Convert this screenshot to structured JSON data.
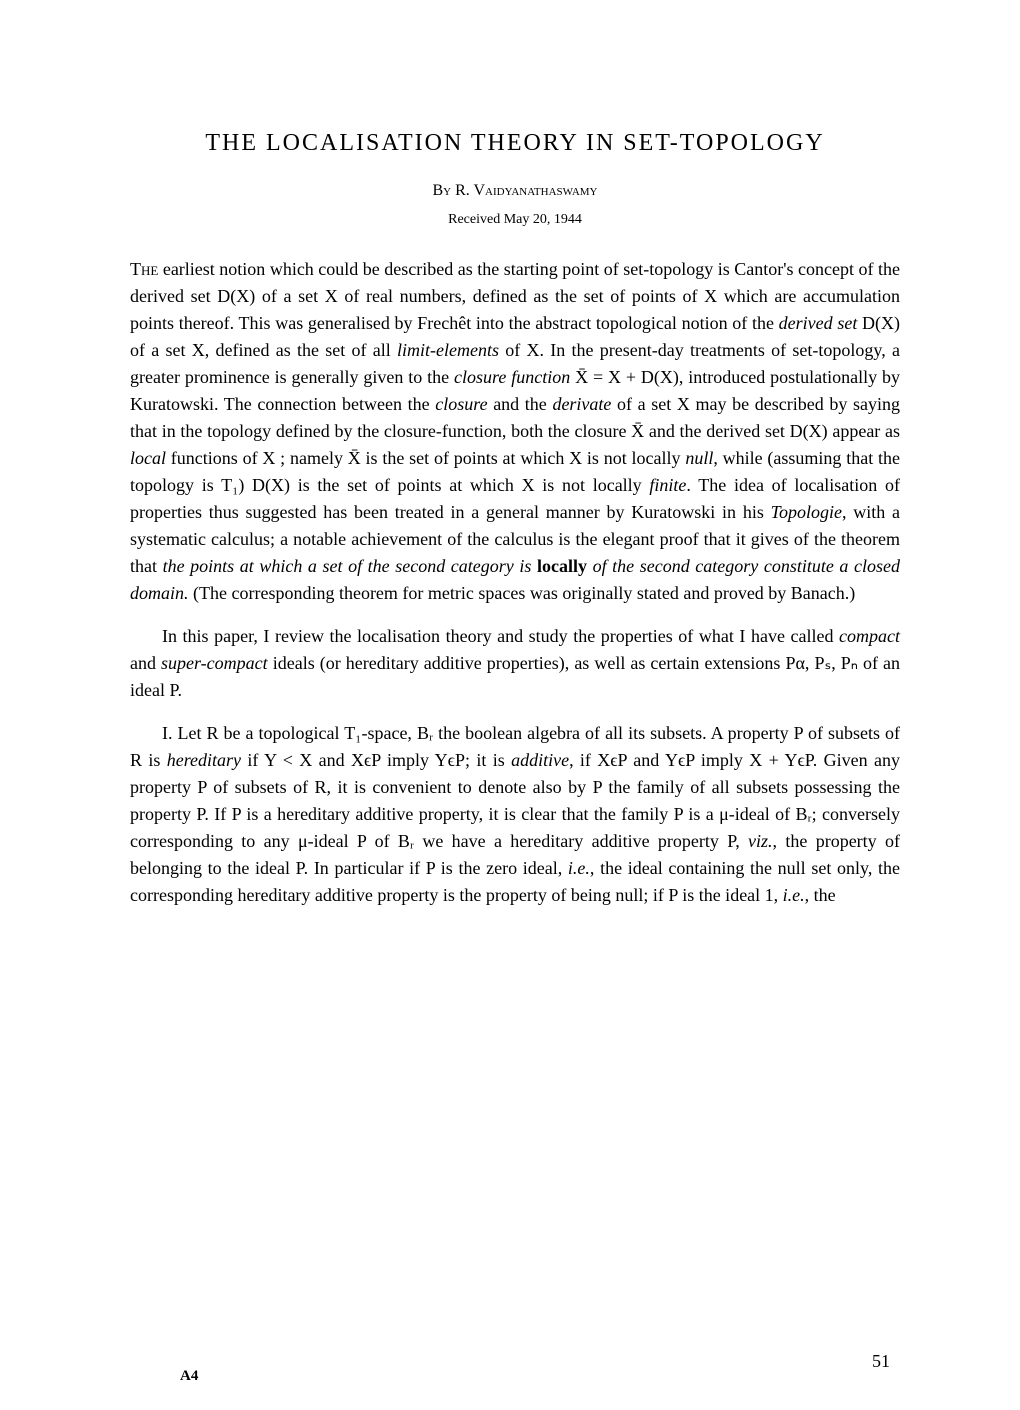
{
  "title": "THE LOCALISATION THEORY IN SET-TOPOLOGY",
  "author_prefix": "By",
  "author_name": "R. Vaidyanathaswamy",
  "received": "Received May 20, 1944",
  "para1_first": "The",
  "para1_rest": " earliest notion which could be described as the starting point of set-topology is Cantor's concept of the derived set D(X) of a set X of real numbers, defined as the set of points of X which are accumulation points thereof. This was generalised by Frechêt into the abstract topological notion of the ",
  "para1_i1": "derived set",
  "para1_mid1": " D(X) of a set X, defined as the set of all ",
  "para1_i2": "limit-elements",
  "para1_mid2": " of X. In the present-day treatments of set-topology, a greater prominence is generally given to the ",
  "para1_i3": "closure function",
  "para1_mid3": " X̄ = X + D(X), introduced postulationally by Kuratowski. The connection between the ",
  "para1_i4": "closure",
  "para1_mid4": " and the ",
  "para1_i5": "derivate",
  "para1_mid5": " of a set X may be described by saying that in the topology defined by the closure-function, both the closure X̄ and the derived set D(X) appear as ",
  "para1_i6": "local",
  "para1_mid6": " functions of X ; namely X̄ is the set of points at which X is not locally ",
  "para1_i7": "null",
  "para1_mid7": ", while (assuming that the topology is T₁) D(X) is the set of points at which X is not locally ",
  "para1_i8": "finite",
  "para1_mid8": ". The idea of localisation of properties thus suggested has been treated in a general manner by Kuratowski in his ",
  "para1_i9": "Topologie",
  "para1_mid9": ", with a systematic calculus; a notable achievement of the calculus is the elegant proof that it gives of the theorem that ",
  "para1_i10": "the points at which a set of the second category is",
  "para1_bold": " locally ",
  "para1_i11": "of the second category constitute a closed domain.",
  "para1_end": " (The corresponding theorem for metric spaces was originally stated and proved by Banach.)",
  "para2_start": "In this paper, I review the localisation theory and study the properties of what I have called ",
  "para2_i1": "compact",
  "para2_mid1": " and ",
  "para2_i2": "super-compact",
  "para2_mid2": " ideals (or hereditary additive properties), as well as certain extensions Pα, Pₛ, Pₙ of an ideal P.",
  "para3_start": "I. Let R be a topological T₁-space, Bᵣ the boolean algebra of all its subsets. A property P of subsets of R is ",
  "para3_i1": "hereditary",
  "para3_mid1": " if Y < X and XϵP imply YϵP; it is ",
  "para3_i2": "additive",
  "para3_mid2": ", if XϵP and YϵP imply X + YϵP. Given any property P of subsets of R, it is convenient to denote also by P the family of all subsets possessing the property P. If P is a hereditary additive property, it is clear that the family P is a μ-ideal of Bᵣ; conversely corresponding to any μ-ideal P of Bᵣ we have a hereditary additive property P, ",
  "para3_i3": "viz.",
  "para3_mid3": ", the property of belonging to the ideal P. In particular if P is the zero ideal, ",
  "para3_i4": "i.e.",
  "para3_mid4": ", the ideal containing the null set only, the corresponding hereditary additive property is the property of being null; if P is the ideal 1, ",
  "para3_i5": "i.e.",
  "para3_end": ", the",
  "page_number": "51",
  "footer_mark": "A4",
  "styling": {
    "background_color": "#ffffff",
    "text_color": "#000000",
    "title_fontsize": 24,
    "body_fontsize": 18,
    "author_fontsize": 16,
    "received_fontsize": 14,
    "line_height": 1.5,
    "font_family": "Times New Roman"
  }
}
